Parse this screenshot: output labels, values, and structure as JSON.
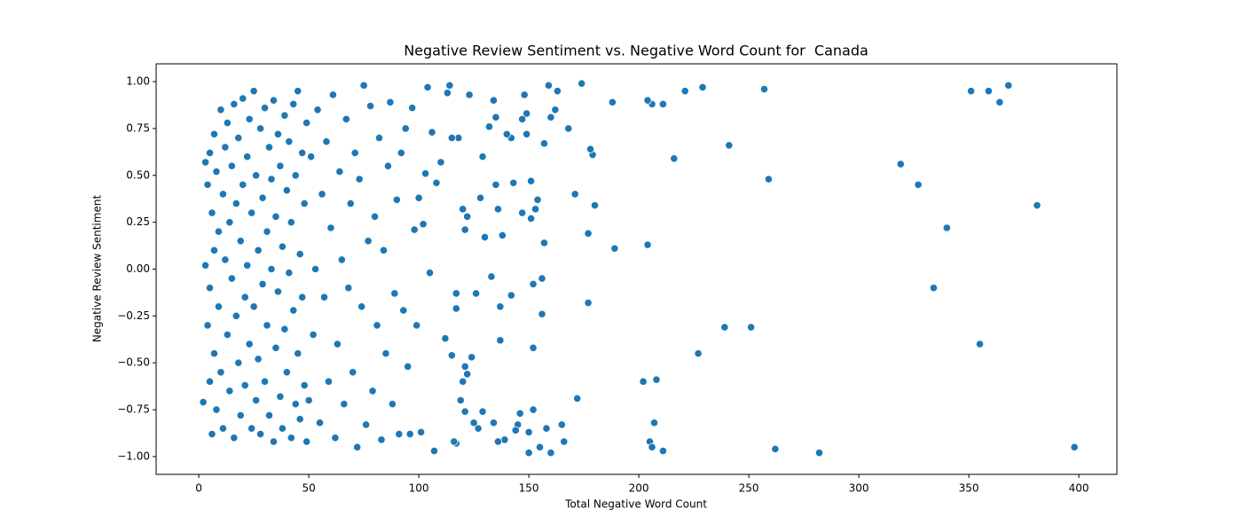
{
  "chart_data": {
    "type": "scatter",
    "title": "Negative Review Sentiment vs. Negative Word Count for  Canada",
    "x_label": "Total Negative Word Count",
    "y_label": "Negative Review Sentiment",
    "color": "#1f77b4",
    "xlim": [
      -19.4,
      417.3
    ],
    "ylim": [
      -1.095,
      1.095
    ],
    "xticks": [
      0,
      50,
      100,
      150,
      200,
      250,
      300,
      350,
      400
    ],
    "yticks": [
      {
        "value": -1,
        "label": "−1.00"
      },
      {
        "value": -0.75,
        "label": "−0.75"
      },
      {
        "value": -0.5,
        "label": "−0.50"
      },
      {
        "value": -0.25,
        "label": "−0.25"
      },
      {
        "value": 0,
        "label": "0.00"
      },
      {
        "value": 0.25,
        "label": "0.25"
      },
      {
        "value": 0.5,
        "label": "0.50"
      },
      {
        "value": 0.75,
        "label": "0.75"
      },
      {
        "value": 1,
        "label": "1.00"
      }
    ],
    "x": [
      398,
      381,
      368,
      364,
      359,
      351,
      355,
      340,
      334,
      327,
      319,
      282,
      262,
      259,
      257,
      251,
      241,
      239,
      229,
      227,
      221,
      216,
      211,
      211,
      208,
      207,
      206,
      204,
      204,
      205,
      206,
      202,
      189,
      188,
      180,
      179,
      178,
      177,
      177,
      174,
      172,
      171,
      168,
      166,
      165,
      163,
      162,
      160,
      160,
      159,
      158,
      157,
      157,
      156,
      156,
      155,
      154,
      153,
      152,
      152,
      152,
      151,
      151,
      150,
      150,
      149,
      149,
      148,
      147,
      147,
      146,
      145,
      144,
      143,
      142,
      142,
      140,
      139,
      138,
      137,
      137,
      136,
      136,
      135,
      135,
      134,
      134,
      133,
      132,
      130,
      129,
      129,
      128,
      127,
      126,
      125,
      124,
      123,
      122,
      122,
      121,
      121,
      121,
      120,
      120,
      119,
      118,
      117,
      117,
      117,
      116,
      115,
      115,
      114,
      113,
      112,
      110,
      108,
      107,
      106,
      105,
      104,
      103,
      102,
      101,
      100,
      99,
      98,
      97,
      96,
      95,
      94,
      93,
      92,
      91,
      90,
      89,
      88,
      87,
      86,
      85,
      84,
      83,
      82,
      81,
      80,
      79,
      78,
      77,
      76,
      75,
      74,
      73,
      72,
      71,
      70,
      69,
      68,
      67,
      66,
      65,
      64,
      63,
      62,
      61,
      60,
      59,
      58,
      57,
      56,
      55,
      54,
      53,
      52,
      51,
      50,
      2,
      3,
      3,
      4,
      4,
      5,
      5,
      5,
      6,
      6,
      7,
      7,
      7,
      8,
      8,
      9,
      9,
      10,
      10,
      11,
      11,
      12,
      12,
      13,
      13,
      14,
      14,
      15,
      15,
      16,
      16,
      17,
      17,
      18,
      18,
      19,
      19,
      20,
      20,
      21,
      21,
      22,
      22,
      23,
      23,
      24,
      24,
      25,
      25,
      26,
      26,
      27,
      27,
      28,
      28,
      29,
      29,
      30,
      30,
      31,
      31,
      32,
      32,
      33,
      33,
      34,
      34,
      35,
      35,
      36,
      36,
      37,
      37,
      38,
      38,
      39,
      39,
      40,
      40,
      41,
      41,
      42,
      42,
      43,
      43,
      44,
      44,
      45,
      45,
      46,
      46,
      47,
      47,
      48,
      48,
      49,
      49
    ],
    "values": [
      -0.95,
      0.34,
      0.98,
      0.89,
      0.95,
      0.95,
      -0.4,
      0.22,
      -0.1,
      0.45,
      0.56,
      -0.98,
      -0.96,
      0.48,
      0.96,
      -0.31,
      0.66,
      -0.31,
      0.97,
      -0.45,
      0.95,
      0.59,
      0.88,
      -0.97,
      -0.59,
      -0.82,
      0.88,
      0.9,
      0.13,
      -0.92,
      -0.95,
      -0.6,
      0.11,
      0.89,
      0.34,
      0.61,
      0.64,
      0.19,
      -0.18,
      0.99,
      -0.69,
      0.4,
      0.75,
      -0.92,
      -0.83,
      0.95,
      0.85,
      0.81,
      -0.98,
      0.98,
      -0.85,
      0.67,
      0.14,
      -0.05,
      -0.24,
      -0.95,
      0.37,
      0.32,
      -0.08,
      -0.42,
      -0.75,
      0.47,
      0.27,
      -0.98,
      -0.87,
      0.72,
      0.83,
      0.93,
      0.8,
      0.3,
      -0.77,
      -0.83,
      -0.86,
      0.46,
      0.7,
      -0.14,
      0.72,
      -0.91,
      0.18,
      -0.2,
      -0.38,
      0.32,
      -0.92,
      0.81,
      0.45,
      0.9,
      -0.82,
      -0.04,
      0.76,
      0.17,
      -0.76,
      0.6,
      0.38,
      -0.85,
      -0.13,
      -0.82,
      -0.47,
      0.93,
      0.28,
      -0.56,
      0.21,
      -0.52,
      -0.76,
      -0.6,
      0.32,
      -0.7,
      0.7,
      -0.13,
      -0.21,
      -0.93,
      -0.92,
      0.7,
      -0.46,
      0.98,
      0.94,
      -0.37,
      0.57,
      0.46,
      -0.97,
      0.73,
      -0.02,
      0.97,
      0.51,
      0.24,
      -0.87,
      0.38,
      -0.3,
      0.21,
      0.86,
      -0.88,
      -0.52,
      0.75,
      -0.22,
      0.62,
      -0.88,
      0.37,
      -0.13,
      -0.72,
      0.89,
      0.55,
      -0.45,
      0.1,
      -0.91,
      0.7,
      -0.3,
      0.28,
      -0.65,
      0.87,
      0.15,
      -0.83,
      0.98,
      -0.2,
      0.48,
      -0.95,
      0.62,
      -0.55,
      0.35,
      -0.1,
      0.8,
      -0.72,
      0.05,
      0.52,
      -0.4,
      -0.9,
      0.93,
      0.22,
      -0.6,
      0.68,
      -0.15,
      0.4,
      -0.82,
      0.85,
      0.0,
      -0.35,
      0.6,
      -0.7,
      -0.71,
      0.57,
      0.02,
      -0.3,
      0.45,
      -0.1,
      0.62,
      -0.6,
      0.3,
      -0.88,
      0.72,
      0.1,
      -0.45,
      -0.75,
      0.52,
      0.2,
      -0.2,
      0.85,
      -0.55,
      0.4,
      -0.85,
      0.05,
      0.65,
      -0.35,
      0.78,
      -0.65,
      0.25,
      -0.05,
      0.55,
      -0.9,
      0.88,
      -0.25,
      0.35,
      0.7,
      -0.5,
      0.15,
      -0.78,
      0.91,
      0.45,
      -0.15,
      -0.62,
      0.6,
      0.02,
      -0.4,
      0.8,
      -0.85,
      0.3,
      0.95,
      -0.2,
      -0.7,
      0.5,
      0.1,
      -0.48,
      0.75,
      -0.88,
      0.38,
      -0.08,
      -0.6,
      0.86,
      0.2,
      -0.3,
      0.65,
      -0.78,
      0.0,
      0.48,
      -0.92,
      0.9,
      -0.42,
      0.28,
      0.72,
      -0.12,
      -0.68,
      0.55,
      0.12,
      -0.85,
      0.82,
      -0.32,
      0.42,
      -0.55,
      -0.02,
      0.68,
      -0.9,
      0.25,
      0.88,
      -0.22,
      -0.72,
      0.5,
      0.95,
      -0.45,
      0.08,
      -0.8,
      0.62,
      -0.15,
      0.35,
      -0.62,
      0.78,
      -0.92
    ]
  }
}
